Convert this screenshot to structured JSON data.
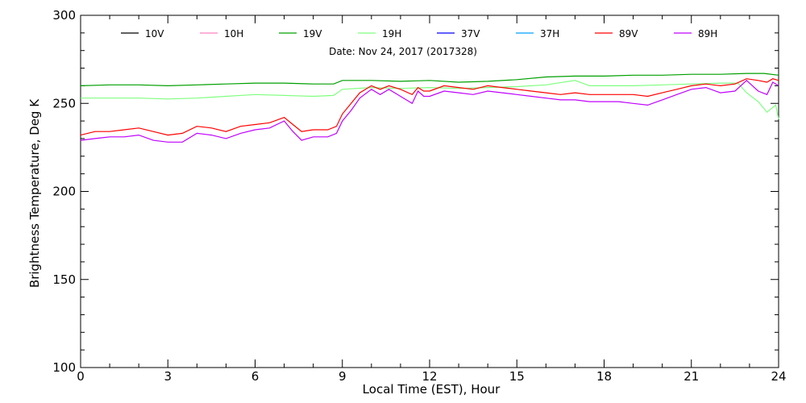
{
  "chart_data": {
    "type": "line",
    "title": "Date: Nov 24, 2017 (2017328)",
    "xlabel": "Local Time (EST), Hour",
    "ylabel": "Brightness Temperature, Deg K",
    "xlim": [
      0,
      24
    ],
    "ylim": [
      100,
      300
    ],
    "xticks": [
      0,
      3,
      6,
      9,
      12,
      15,
      18,
      21,
      24
    ],
    "yticks": [
      100,
      150,
      200,
      250,
      300
    ],
    "grid": false,
    "legend_position": "top",
    "series": [
      {
        "name": "10V",
        "color": "#000000",
        "x": [],
        "y": []
      },
      {
        "name": "10H",
        "color": "#ff80c0",
        "x": [],
        "y": []
      },
      {
        "name": "19V",
        "color": "#00a000",
        "x": [
          0,
          1,
          2,
          3,
          4,
          5,
          6,
          7,
          8,
          8.7,
          9,
          10,
          11,
          12,
          13,
          14,
          15,
          16,
          17,
          18,
          19,
          20,
          21,
          22,
          22.9,
          23.5,
          24
        ],
        "y": [
          260,
          260.5,
          260.5,
          260,
          260.5,
          261,
          261.5,
          261.5,
          261,
          261,
          263,
          263,
          262.5,
          263,
          262,
          262.5,
          263.5,
          265,
          265.5,
          265.5,
          266,
          266,
          266.5,
          266.5,
          267,
          267,
          266
        ]
      },
      {
        "name": "19H",
        "color": "#80ff80",
        "x": [
          0,
          1,
          2,
          3,
          4,
          5,
          6,
          7,
          8,
          8.7,
          9,
          10,
          11,
          12,
          13,
          14,
          15,
          16,
          17,
          17.5,
          18,
          19,
          20,
          21,
          22,
          22.6,
          22.9,
          23.3,
          23.6,
          23.9,
          24
        ],
        "y": [
          253,
          253,
          253,
          252.5,
          253,
          254,
          255,
          254.5,
          254,
          254.5,
          258,
          259,
          258.5,
          259,
          258.5,
          259,
          259.5,
          260.5,
          263,
          260,
          260,
          260,
          260.5,
          261,
          261.5,
          261.5,
          256,
          251,
          245,
          249,
          241
        ]
      },
      {
        "name": "37V",
        "color": "#0000ff",
        "x": [],
        "y": []
      },
      {
        "name": "37H",
        "color": "#00a0ff",
        "x": [],
        "y": []
      },
      {
        "name": "89V",
        "color": "#ff0000",
        "x": [
          0,
          0.5,
          1,
          1.5,
          2,
          2.5,
          3,
          3.5,
          4,
          4.5,
          5,
          5.5,
          6,
          6.5,
          7,
          7.3,
          7.6,
          8,
          8.5,
          8.8,
          9,
          9.3,
          9.6,
          10,
          10.3,
          10.6,
          11,
          11.4,
          11.6,
          11.8,
          12,
          12.5,
          13,
          13.5,
          14,
          14.5,
          15,
          15.5,
          16,
          16.5,
          17,
          17.5,
          18,
          18.5,
          19,
          19.5,
          20,
          20.5,
          21,
          21.5,
          22,
          22.5,
          22.9,
          23.3,
          23.6,
          23.8,
          24
        ],
        "y": [
          232,
          234,
          234,
          235,
          236,
          234,
          232,
          233,
          237,
          236,
          234,
          237,
          238,
          239,
          242,
          238,
          234,
          235,
          235,
          237,
          244,
          250,
          256,
          260,
          258,
          260,
          258,
          255,
          259,
          257,
          257,
          260,
          259,
          258,
          260,
          259,
          258,
          257,
          256,
          255,
          256,
          255,
          255,
          255,
          255,
          254,
          256,
          258,
          260,
          261,
          260,
          261,
          264,
          263,
          262,
          264,
          263
        ]
      },
      {
        "name": "89H",
        "color": "#c000ff",
        "x": [
          0,
          0.5,
          1,
          1.5,
          2,
          2.5,
          3,
          3.5,
          4,
          4.5,
          5,
          5.5,
          6,
          6.5,
          7,
          7.3,
          7.6,
          8,
          8.5,
          8.8,
          9,
          9.3,
          9.6,
          10,
          10.3,
          10.6,
          11,
          11.4,
          11.6,
          11.8,
          12,
          12.5,
          13,
          13.5,
          14,
          14.5,
          15,
          15.5,
          16,
          16.5,
          17,
          17.5,
          18,
          18.5,
          19,
          19.5,
          20,
          20.5,
          21,
          21.5,
          22,
          22.5,
          22.9,
          23.3,
          23.6,
          23.8,
          24
        ],
        "y": [
          229,
          230,
          231,
          231,
          232,
          229,
          228,
          228,
          233,
          232,
          230,
          233,
          235,
          236,
          240,
          234,
          229,
          231,
          231,
          233,
          240,
          246,
          253,
          258,
          255,
          258,
          254,
          250,
          257,
          254,
          254,
          257,
          256,
          255,
          257,
          256,
          255,
          254,
          253,
          252,
          252,
          251,
          251,
          251,
          250,
          249,
          252,
          255,
          258,
          259,
          256,
          257,
          263,
          257,
          255,
          262,
          260
        ]
      }
    ]
  }
}
